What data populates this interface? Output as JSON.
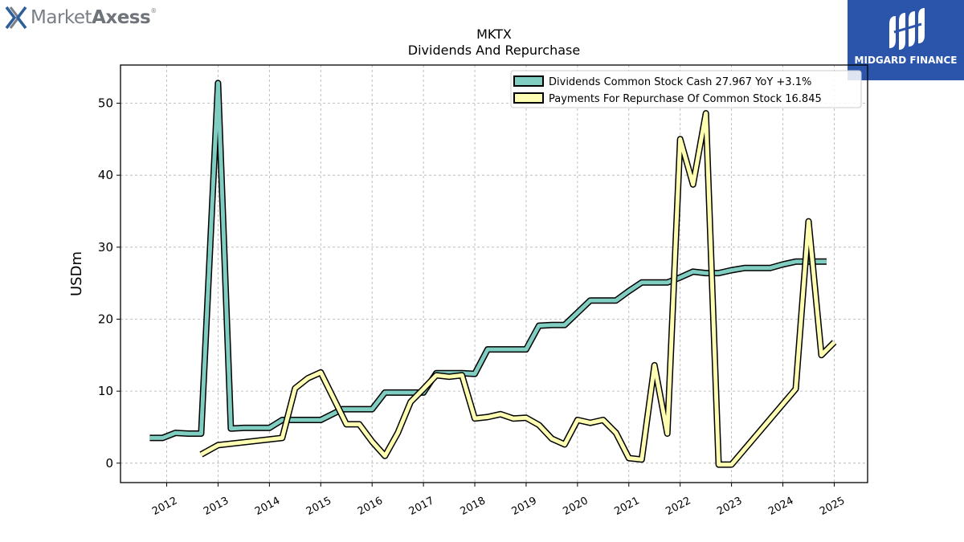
{
  "branding": {
    "left_logo": {
      "name": "MarketAxess",
      "part1": "Market",
      "part2": "Axess",
      "mark": "®",
      "icon": "x-logo-icon"
    },
    "right_logo": {
      "name": "MIDGARD FINANCE",
      "icon": "midgard-m-logo-icon",
      "background": "#2a55ab"
    }
  },
  "chart_data": {
    "type": "line",
    "title": "MKTX",
    "subtitle": "Dividends And Repurchase",
    "xlabel": "",
    "ylabel": "USDm",
    "xlim": [
      2011.1,
      2025.65
    ],
    "ylim": [
      -2.7,
      55.3
    ],
    "yticks": [
      0,
      10,
      20,
      30,
      40,
      50
    ],
    "xticks": [
      2012,
      2013,
      2014,
      2015,
      2016,
      2017,
      2018,
      2019,
      2020,
      2021,
      2022,
      2023,
      2024,
      2025
    ],
    "grid": true,
    "legend_position": "top-right",
    "series": [
      {
        "name": "Dividends Common Stock Cash  27.967 YoY +3.1%",
        "color": "#80cdc1",
        "points": [
          [
            2011.67,
            3.5
          ],
          [
            2011.92,
            3.5
          ],
          [
            2012.17,
            4.2
          ],
          [
            2012.42,
            4.1
          ],
          [
            2012.67,
            4.1
          ],
          [
            2013.0,
            52.8
          ],
          [
            2013.25,
            4.8
          ],
          [
            2013.5,
            4.9
          ],
          [
            2013.75,
            4.9
          ],
          [
            2014.0,
            4.9
          ],
          [
            2014.25,
            6.0
          ],
          [
            2014.5,
            6.0
          ],
          [
            2014.75,
            6.0
          ],
          [
            2015.0,
            6.0
          ],
          [
            2015.42,
            7.5
          ],
          [
            2015.75,
            7.5
          ],
          [
            2016.0,
            7.5
          ],
          [
            2016.25,
            9.8
          ],
          [
            2016.5,
            9.8
          ],
          [
            2016.75,
            9.8
          ],
          [
            2017.0,
            9.8
          ],
          [
            2017.25,
            12.5
          ],
          [
            2017.5,
            12.5
          ],
          [
            2017.75,
            12.5
          ],
          [
            2018.0,
            12.4
          ],
          [
            2018.25,
            15.8
          ],
          [
            2018.5,
            15.8
          ],
          [
            2018.75,
            15.8
          ],
          [
            2019.0,
            15.8
          ],
          [
            2019.25,
            19.1
          ],
          [
            2019.5,
            19.2
          ],
          [
            2019.75,
            19.2
          ],
          [
            2020.0,
            20.9
          ],
          [
            2020.25,
            22.6
          ],
          [
            2020.5,
            22.6
          ],
          [
            2020.75,
            22.6
          ],
          [
            2021.0,
            23.9
          ],
          [
            2021.25,
            25.1
          ],
          [
            2021.5,
            25.1
          ],
          [
            2021.75,
            25.1
          ],
          [
            2022.0,
            25.8
          ],
          [
            2022.25,
            26.6
          ],
          [
            2022.5,
            26.4
          ],
          [
            2022.75,
            26.4
          ],
          [
            2023.0,
            26.8
          ],
          [
            2023.25,
            27.1
          ],
          [
            2023.5,
            27.1
          ],
          [
            2023.75,
            27.1
          ],
          [
            2024.0,
            27.6
          ],
          [
            2024.25,
            28.0
          ],
          [
            2024.5,
            28.0
          ],
          [
            2024.75,
            28.0
          ],
          [
            2024.85,
            28.0
          ]
        ]
      },
      {
        "name": "Payments For Repurchase Of Common Stock  16.845",
        "color": "#ffffb3",
        "points": [
          [
            2012.67,
            1.2
          ],
          [
            2013.0,
            2.5
          ],
          [
            2013.5,
            2.9
          ],
          [
            2014.0,
            3.3
          ],
          [
            2014.25,
            3.5
          ],
          [
            2014.5,
            10.4
          ],
          [
            2014.75,
            11.8
          ],
          [
            2015.0,
            12.6
          ],
          [
            2015.25,
            9.0
          ],
          [
            2015.5,
            5.4
          ],
          [
            2015.75,
            5.4
          ],
          [
            2016.0,
            3.0
          ],
          [
            2016.25,
            1.0
          ],
          [
            2016.5,
            4.2
          ],
          [
            2016.75,
            8.5
          ],
          [
            2017.0,
            10.3
          ],
          [
            2017.25,
            12.2
          ],
          [
            2017.5,
            12.0
          ],
          [
            2017.75,
            12.2
          ],
          [
            2018.0,
            6.2
          ],
          [
            2018.25,
            6.4
          ],
          [
            2018.5,
            6.8
          ],
          [
            2018.75,
            6.2
          ],
          [
            2019.0,
            6.3
          ],
          [
            2019.25,
            5.3
          ],
          [
            2019.5,
            3.4
          ],
          [
            2019.75,
            2.6
          ],
          [
            2020.0,
            6.0
          ],
          [
            2020.25,
            5.6
          ],
          [
            2020.5,
            6.0
          ],
          [
            2020.75,
            4.2
          ],
          [
            2021.0,
            0.7
          ],
          [
            2021.25,
            0.5
          ],
          [
            2021.5,
            13.6
          ],
          [
            2021.75,
            4.1
          ],
          [
            2022.0,
            45.0
          ],
          [
            2022.25,
            38.7
          ],
          [
            2022.5,
            48.6
          ],
          [
            2022.75,
            -0.2
          ],
          [
            2023.0,
            -0.2
          ],
          [
            2024.25,
            10.3
          ],
          [
            2024.5,
            33.6
          ],
          [
            2024.75,
            15.0
          ],
          [
            2025.0,
            16.8
          ]
        ]
      }
    ]
  }
}
